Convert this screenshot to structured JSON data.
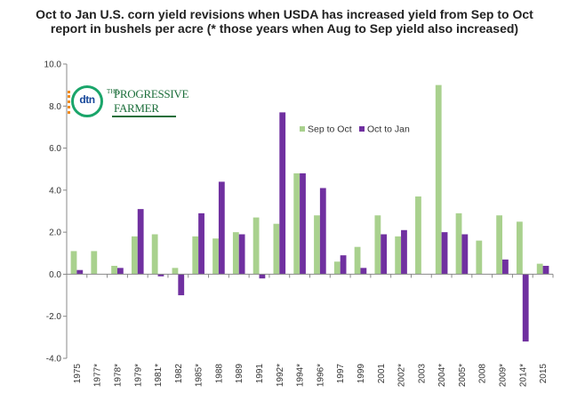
{
  "chart_data": {
    "type": "bar",
    "title": "Oct to Jan U.S. corn yield revisions when USDA has increased yield from Sep to Oct report in bushels per acre (* those years when Aug to Sep yield also increased)",
    "categories": [
      "1975",
      "1977*",
      "1978*",
      "1979*",
      "1981*",
      "1982",
      "1985*",
      "1988",
      "1989",
      "1991",
      "1992*",
      "1994*",
      "1996*",
      "1997",
      "1999",
      "2001",
      "2002*",
      "2003",
      "2004*",
      "2005*",
      "2008",
      "2009*",
      "2014*",
      "2015"
    ],
    "series": [
      {
        "name": "Sep to Oct",
        "color": "#a9d18e",
        "values": [
          1.1,
          1.1,
          0.4,
          1.8,
          1.9,
          0.3,
          1.8,
          1.7,
          2.0,
          2.7,
          2.4,
          4.8,
          2.8,
          0.6,
          1.3,
          2.8,
          1.8,
          3.7,
          9.0,
          2.9,
          1.6,
          2.8,
          2.5,
          0.5
        ]
      },
      {
        "name": "Oct to Jan",
        "color": "#7030a0",
        "values": [
          0.2,
          0.0,
          0.3,
          3.1,
          -0.1,
          -1.0,
          2.9,
          4.4,
          1.9,
          -0.2,
          7.7,
          4.8,
          4.1,
          0.9,
          0.3,
          1.9,
          2.1,
          0.0,
          2.0,
          1.9,
          0.0,
          0.7,
          -3.2,
          0.4
        ]
      }
    ],
    "ylim": [
      -4.0,
      10.0
    ],
    "yticks": [
      "-4.0",
      "-2.0",
      "0.0",
      "2.0",
      "4.0",
      "6.0",
      "8.0",
      "10.0"
    ],
    "xlabel": "",
    "ylabel": "",
    "grid": false,
    "legend_position": "upper-right inside plot"
  },
  "logo": {
    "mark": "dtn",
    "word_the": "THE",
    "word_1": "PROGRESSIVE",
    "word_2": "FARMER"
  }
}
